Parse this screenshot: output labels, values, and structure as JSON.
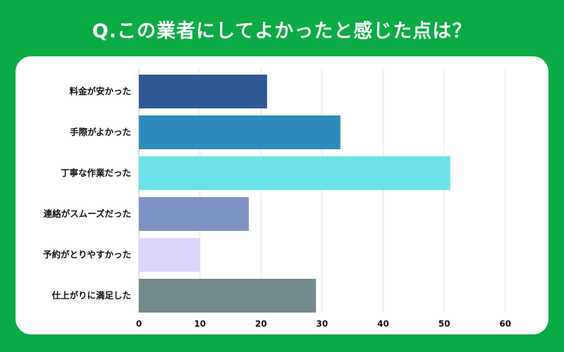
{
  "title": "Q.この業者にしてよかったと感じた点は？",
  "chart_data": {
    "type": "bar",
    "orientation": "horizontal",
    "title": "Q.この業者にしてよかったと感じた点は？",
    "categories": [
      "料金が安かった",
      "手際がよかった",
      "丁寧な作業だった",
      "連絡がスムーズだった",
      "予約がとりやすかった",
      "仕上がりに満足した"
    ],
    "values": [
      21,
      33,
      51,
      18,
      10,
      29
    ],
    "colors": [
      "#2f5a96",
      "#2e8bbd",
      "#6ce3ea",
      "#7f92c4",
      "#ddd5fd",
      "#728a8c"
    ],
    "xlim": [
      0,
      65
    ],
    "ticks": [
      0,
      10,
      20,
      30,
      40,
      50,
      60
    ],
    "grid": true,
    "xlabel": "",
    "ylabel": ""
  }
}
